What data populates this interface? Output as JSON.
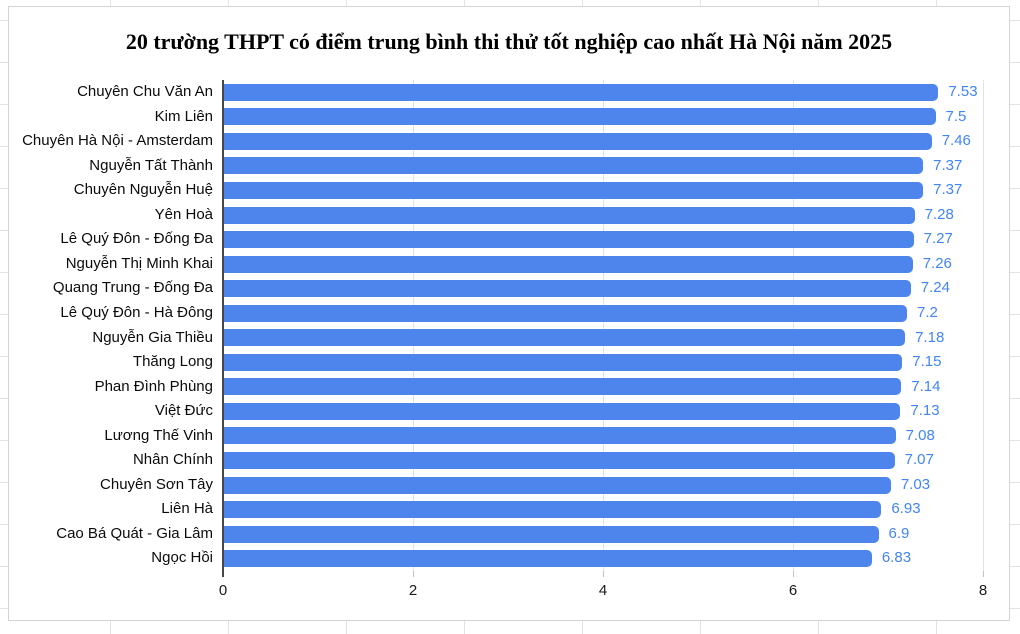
{
  "chart_data": {
    "type": "bar",
    "orientation": "horizontal",
    "title": "20 trường THPT có điểm trung bình thi thử tốt nghiệp cao nhất Hà Nội năm 2025",
    "categories": [
      "Chuyên Chu Văn An",
      "Kim Liên",
      "Chuyên Hà Nội - Amsterdam",
      "Nguyễn Tất Thành",
      "Chuyên Nguyễn Huệ",
      "Yên Hoà",
      "Lê Quý Đôn - Đống Đa",
      "Nguyễn Thị Minh Khai",
      "Quang Trung - Đống Đa",
      "Lê Quý Đôn - Hà Đông",
      "Nguyễn Gia Thiều",
      "Thăng Long",
      "Phan Đình Phùng",
      "Việt Đức",
      "Lương Thế Vinh",
      "Nhân Chính",
      "Chuyên Sơn Tây",
      "Liên Hà",
      "Cao Bá Quát - Gia Lâm",
      "Ngọc Hồi"
    ],
    "values": [
      7.53,
      7.5,
      7.46,
      7.37,
      7.37,
      7.28,
      7.27,
      7.26,
      7.24,
      7.2,
      7.18,
      7.15,
      7.14,
      7.13,
      7.08,
      7.07,
      7.03,
      6.93,
      6.9,
      6.83
    ],
    "value_labels": [
      "7.53",
      "7.5",
      "7.46",
      "7.37",
      "7.37",
      "7.28",
      "7.27",
      "7.26",
      "7.24",
      "7.2",
      "7.18",
      "7.15",
      "7.14",
      "7.13",
      "7.08",
      "7.07",
      "7.03",
      "6.93",
      "6.9",
      "6.83"
    ],
    "x_ticks": [
      0,
      2,
      4,
      6,
      8
    ],
    "x_tick_labels": [
      "0",
      "2",
      "4",
      "6",
      "8"
    ],
    "xlim": [
      0,
      8
    ],
    "grid": true,
    "legend": "none",
    "bar_color": "#4d85ec",
    "value_label_color": "#4285f4"
  }
}
